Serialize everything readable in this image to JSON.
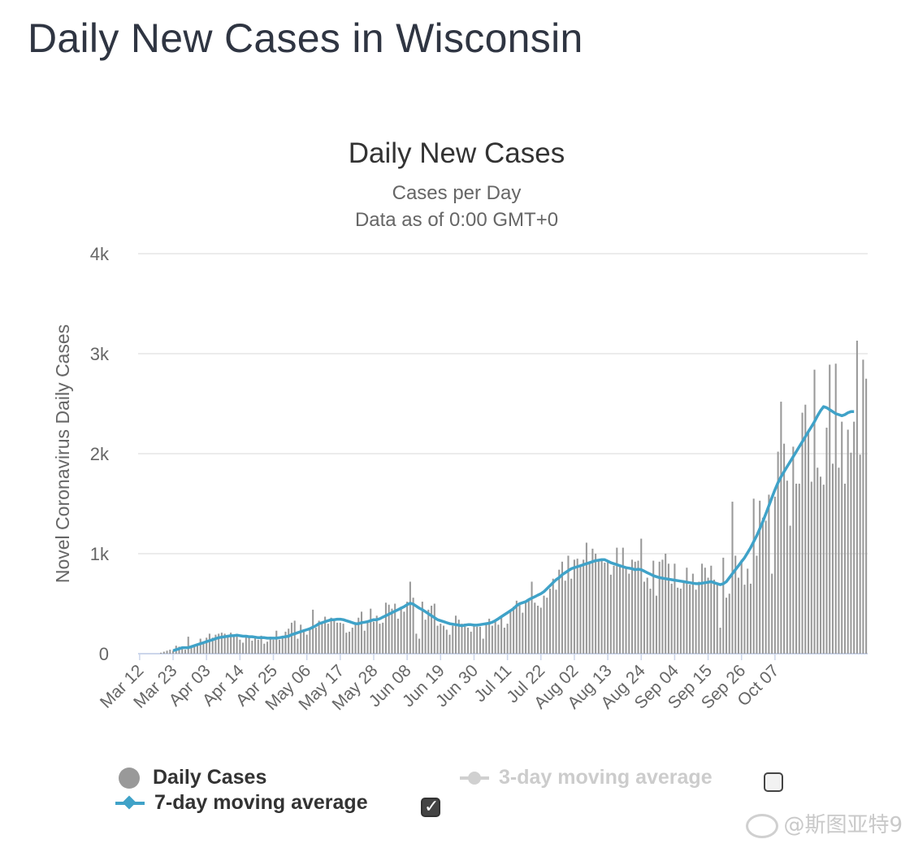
{
  "page": {
    "title": "Daily New Cases in Wisconsin"
  },
  "colors": {
    "bar": "#999999",
    "avg7": "#3fa2c8",
    "avg3": "#cfcfcf",
    "grid": "#e6e6e6",
    "axis": "#ccd6eb"
  },
  "chart_data": {
    "type": "bar",
    "title": "Daily New Cases",
    "subtitle": "Cases per Day",
    "subtitle2": "Data as of 0:00 GMT+0",
    "ylabel": "Novel Coronavirus Daily Cases",
    "ylim": [
      0,
      4000
    ],
    "yticks": [
      0,
      1000,
      2000,
      3000,
      4000
    ],
    "ytick_labels": [
      "0",
      "1k",
      "2k",
      "3k",
      "4k"
    ],
    "start_date": "Mar 12",
    "x_tick_labels": [
      "Mar 12",
      "Mar 23",
      "Apr 03",
      "Apr 14",
      "Apr 25",
      "May 06",
      "May 17",
      "May 28",
      "Jun 08",
      "Jun 19",
      "Jun 30",
      "Jul 11",
      "Jul 22",
      "Aug 02",
      "Aug 13",
      "Aug 24",
      "Sep 04",
      "Sep 15",
      "Sep 26",
      "Oct 07"
    ],
    "grid": true,
    "legend_position": "bottom",
    "legend": {
      "daily": "Daily Cases",
      "avg3": "3-day moving average",
      "avg7": "7-day moving average",
      "avg3_checked": false,
      "avg7_checked": true
    },
    "series": [
      {
        "name": "Daily Cases",
        "values": [
          0,
          0,
          0,
          0,
          0,
          0,
          0,
          10,
          20,
          30,
          40,
          30,
          80,
          70,
          60,
          40,
          170,
          60,
          80,
          100,
          150,
          120,
          160,
          200,
          160,
          190,
          200,
          210,
          200,
          180,
          210,
          170,
          180,
          140,
          110,
          180,
          180,
          130,
          160,
          140,
          180,
          100,
          120,
          170,
          140,
          230,
          140,
          180,
          220,
          250,
          310,
          330,
          150,
          290,
          220,
          190,
          240,
          440,
          260,
          330,
          320,
          370,
          300,
          360,
          340,
          310,
          310,
          300,
          210,
          220,
          260,
          310,
          360,
          420,
          230,
          320,
          450,
          320,
          380,
          300,
          310,
          510,
          490,
          450,
          500,
          350,
          470,
          420,
          520,
          720,
          560,
          200,
          150,
          520,
          340,
          440,
          480,
          500,
          280,
          300,
          280,
          240,
          190,
          280,
          380,
          340,
          300,
          300,
          260,
          220,
          280,
          270,
          270,
          150,
          290,
          350,
          280,
          330,
          290,
          380,
          260,
          300,
          440,
          470,
          530,
          500,
          410,
          520,
          540,
          720,
          510,
          480,
          460,
          580,
          560,
          650,
          750,
          640,
          840,
          920,
          730,
          980,
          750,
          940,
          950,
          880,
          940,
          1110,
          920,
          1050,
          1000,
          940,
          930,
          910,
          920,
          790,
          880,
          1060,
          880,
          1060,
          870,
          800,
          940,
          920,
          930,
          1150,
          720,
          760,
          650,
          930,
          580,
          920,
          940,
          1000,
          900,
          700,
          900,
          660,
          650,
          710,
          860,
          690,
          800,
          640,
          720,
          900,
          860,
          760,
          880,
          740,
          690,
          260,
          960,
          560,
          600,
          1520,
          980,
          760,
          940,
          690,
          850,
          700,
          1550,
          980,
          1530,
          1360,
          1330,
          1590,
          800,
          1570,
          2020,
          2520,
          2100,
          1730,
          1280,
          2070,
          1700,
          1700,
          2410,
          2490,
          2240,
          1720,
          2840,
          1860,
          1770,
          1690,
          2260,
          2890,
          1900,
          2900,
          1860,
          2320,
          1700,
          2240,
          2010,
          2320,
          3130,
          1990,
          2940,
          2750
        ]
      },
      {
        "name": "7-day moving average",
        "values": [
          null,
          null,
          null,
          null,
          null,
          null,
          null,
          null,
          null,
          null,
          null,
          30,
          40,
          50,
          60,
          60,
          60,
          70,
          80,
          90,
          100,
          110,
          120,
          130,
          140,
          150,
          160,
          165,
          170,
          175,
          180,
          180,
          185,
          180,
          175,
          175,
          170,
          170,
          165,
          160,
          160,
          160,
          155,
          155,
          155,
          155,
          160,
          165,
          170,
          175,
          190,
          200,
          210,
          220,
          230,
          240,
          250,
          265,
          280,
          300,
          310,
          320,
          330,
          340,
          340,
          345,
          345,
          340,
          330,
          320,
          310,
          300,
          300,
          310,
          315,
          320,
          330,
          340,
          340,
          350,
          365,
          380,
          395,
          410,
          425,
          440,
          455,
          470,
          490,
          505,
          495,
          475,
          455,
          440,
          420,
          400,
          380,
          360,
          340,
          330,
          320,
          310,
          300,
          295,
          290,
          285,
          280,
          285,
          290,
          290,
          285,
          285,
          290,
          295,
          300,
          305,
          315,
          330,
          350,
          370,
          390,
          410,
          430,
          450,
          480,
          500,
          510,
          520,
          540,
          555,
          570,
          585,
          600,
          620,
          650,
          680,
          710,
          740,
          760,
          790,
          810,
          830,
          850,
          860,
          870,
          880,
          890,
          900,
          910,
          920,
          930,
          935,
          940,
          940,
          925,
          910,
          900,
          890,
          880,
          870,
          860,
          855,
          850,
          840,
          845,
          840,
          825,
          810,
          795,
          780,
          770,
          760,
          755,
          750,
          745,
          740,
          735,
          730,
          725,
          720,
          715,
          710,
          705,
          700,
          700,
          705,
          710,
          715,
          720,
          710,
          700,
          690,
          700,
          720,
          760,
          800,
          840,
          880,
          920,
          960,
          1010,
          1060,
          1120,
          1180,
          1250,
          1320,
          1400,
          1480,
          1560,
          1640,
          1710,
          1770,
          1820,
          1870,
          1920,
          1970,
          2020,
          2070,
          2120,
          2170,
          2220,
          2270,
          2320,
          2380,
          2430,
          2470,
          2460,
          2440,
          2420,
          2400,
          2390,
          2380,
          2390,
          2410,
          2420,
          2420
        ]
      }
    ]
  },
  "watermark": "@斯图亚特9"
}
